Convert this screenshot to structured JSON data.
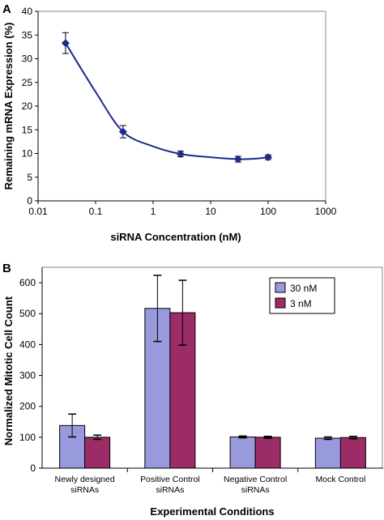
{
  "chart_data": [
    {
      "panel": "A",
      "type": "line",
      "xlabel": "siRNA Concentration (nM)",
      "ylabel": "Remaining mRNA Expression (%)",
      "xscale": "log",
      "xlim": [
        0.01,
        1000
      ],
      "ylim": [
        0,
        40
      ],
      "xticks": [
        0.01,
        0.1,
        1,
        10,
        100,
        1000
      ],
      "xtick_labels": [
        "0.01",
        "0.1",
        "1",
        "10",
        "100",
        "1000"
      ],
      "yticks": [
        0,
        5,
        10,
        15,
        20,
        25,
        30,
        35,
        40
      ],
      "grid": false,
      "line_color": "#1f2a8c",
      "marker": "diamond",
      "x": [
        0.03,
        0.3,
        3,
        30,
        100
      ],
      "y": [
        33.3,
        14.6,
        9.9,
        8.8,
        9.2
      ],
      "error": [
        2.2,
        1.3,
        0.6,
        0.6,
        0.5
      ],
      "curve": [
        [
          0.03,
          33.3
        ],
        [
          0.1,
          23.0
        ],
        [
          0.3,
          14.6
        ],
        [
          1,
          11.5
        ],
        [
          3,
          9.9
        ],
        [
          10,
          9.2
        ],
        [
          30,
          8.8
        ],
        [
          60,
          8.9
        ],
        [
          100,
          9.2
        ]
      ]
    },
    {
      "panel": "B",
      "type": "bar",
      "xlabel": "Experimental Conditions",
      "ylabel": "Normalized Mitotic Cell Count",
      "ylim": [
        0,
        650
      ],
      "yticks": [
        0,
        100,
        200,
        300,
        400,
        500,
        600
      ],
      "grid": false,
      "categories": [
        [
          "Newly designed",
          "siRNAs"
        ],
        [
          "Positive Control",
          "siRNAs"
        ],
        [
          "Negative Control",
          "siRNAs"
        ],
        [
          "Mock Control"
        ]
      ],
      "series": [
        {
          "name": "30 nM",
          "color": "#9999dd",
          "values": [
            138,
            517,
            101,
            97
          ],
          "error": [
            37,
            107,
            3,
            4
          ]
        },
        {
          "name": "3 nM",
          "color": "#9b2c66",
          "values": [
            100,
            503,
            100,
            99
          ],
          "error": [
            7,
            105,
            3,
            4
          ]
        }
      ],
      "legend": "top-right"
    }
  ]
}
